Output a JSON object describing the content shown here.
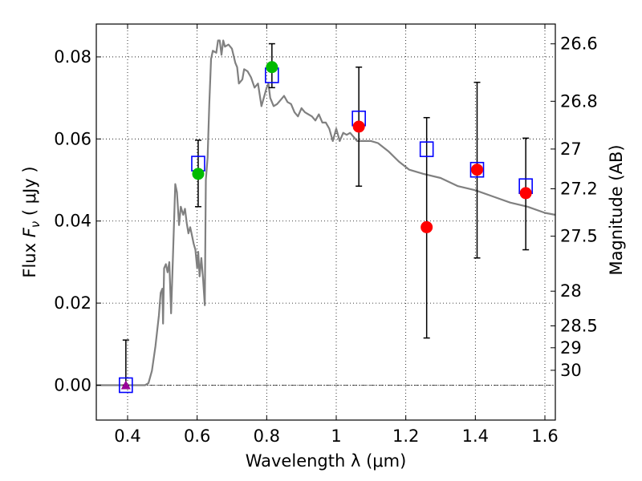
{
  "chart_data": {
    "type": "scatter",
    "title": "",
    "xlabel": "Wavelength  λ (μm)",
    "ylabel_prefix": "Flux  ",
    "ylabel_var": "F",
    "ylabel_sub": "ν",
    "ylabel_suffix": " ( μJy )",
    "y2label": "Magnitude (AB)",
    "xlim": [
      0.31,
      1.63
    ],
    "ylim": [
      -0.0085,
      0.088
    ],
    "grid": true,
    "x_ticks": [
      {
        "value": 0.4,
        "label": "0.4"
      },
      {
        "value": 0.6,
        "label": "0.6"
      },
      {
        "value": 0.8,
        "label": "0.8"
      },
      {
        "value": 1.0,
        "label": "1"
      },
      {
        "value": 1.2,
        "label": "1.2"
      },
      {
        "value": 1.4,
        "label": "1.4"
      },
      {
        "value": 1.6,
        "label": "1.6"
      }
    ],
    "y_ticks": [
      {
        "value": 0.0,
        "label": "0.00"
      },
      {
        "value": 0.02,
        "label": "0.02"
      },
      {
        "value": 0.04,
        "label": "0.04"
      },
      {
        "value": 0.06,
        "label": "0.06"
      },
      {
        "value": 0.08,
        "label": "0.08"
      }
    ],
    "mag_ticks": [
      {
        "mag": 26.6,
        "label": "26.6"
      },
      {
        "mag": 26.8,
        "label": "26.8"
      },
      {
        "mag": 27.0,
        "label": "27"
      },
      {
        "mag": 27.2,
        "label": "27.2"
      },
      {
        "mag": 27.5,
        "label": "27.5"
      },
      {
        "mag": 28.0,
        "label": "28"
      },
      {
        "mag": 28.5,
        "label": "28.5"
      },
      {
        "mag": 29.0,
        "label": "29"
      },
      {
        "mag": 30.0,
        "label": "30"
      }
    ],
    "model_sed": {
      "name": "model SED",
      "color": "#808080",
      "points": [
        [
          0.31,
          0.0
        ],
        [
          0.45,
          0.0
        ],
        [
          0.46,
          0.0005
        ],
        [
          0.47,
          0.0035
        ],
        [
          0.48,
          0.0095
        ],
        [
          0.49,
          0.017
        ],
        [
          0.495,
          0.0225
        ],
        [
          0.5,
          0.0235
        ],
        [
          0.502,
          0.015
        ],
        [
          0.505,
          0.0285
        ],
        [
          0.51,
          0.0295
        ],
        [
          0.515,
          0.0275
        ],
        [
          0.52,
          0.03
        ],
        [
          0.525,
          0.0175
        ],
        [
          0.53,
          0.03
        ],
        [
          0.537,
          0.049
        ],
        [
          0.542,
          0.047
        ],
        [
          0.548,
          0.039
        ],
        [
          0.553,
          0.0435
        ],
        [
          0.56,
          0.0415
        ],
        [
          0.565,
          0.043
        ],
        [
          0.57,
          0.0395
        ],
        [
          0.575,
          0.037
        ],
        [
          0.58,
          0.0385
        ],
        [
          0.585,
          0.0365
        ],
        [
          0.59,
          0.0345
        ],
        [
          0.595,
          0.033
        ],
        [
          0.6,
          0.0285
        ],
        [
          0.603,
          0.0325
        ],
        [
          0.607,
          0.0265
        ],
        [
          0.612,
          0.031
        ],
        [
          0.617,
          0.026
        ],
        [
          0.622,
          0.0195
        ],
        [
          0.625,
          0.05
        ],
        [
          0.63,
          0.0555
        ],
        [
          0.635,
          0.0685
        ],
        [
          0.64,
          0.0795
        ],
        [
          0.645,
          0.0815
        ],
        [
          0.655,
          0.081
        ],
        [
          0.66,
          0.084
        ],
        [
          0.665,
          0.084
        ],
        [
          0.67,
          0.0805
        ],
        [
          0.675,
          0.084
        ],
        [
          0.68,
          0.0825
        ],
        [
          0.69,
          0.083
        ],
        [
          0.7,
          0.082
        ],
        [
          0.71,
          0.0785
        ],
        [
          0.715,
          0.0775
        ],
        [
          0.72,
          0.0735
        ],
        [
          0.73,
          0.0745
        ],
        [
          0.735,
          0.077
        ],
        [
          0.745,
          0.0765
        ],
        [
          0.755,
          0.075
        ],
        [
          0.765,
          0.0725
        ],
        [
          0.775,
          0.0735
        ],
        [
          0.785,
          0.068
        ],
        [
          0.8,
          0.0725
        ],
        [
          0.805,
          0.0735
        ],
        [
          0.81,
          0.07
        ],
        [
          0.82,
          0.068
        ],
        [
          0.83,
          0.0685
        ],
        [
          0.84,
          0.0695
        ],
        [
          0.85,
          0.0705
        ],
        [
          0.86,
          0.069
        ],
        [
          0.87,
          0.0685
        ],
        [
          0.88,
          0.0665
        ],
        [
          0.89,
          0.0655
        ],
        [
          0.9,
          0.0675
        ],
        [
          0.91,
          0.0665
        ],
        [
          0.93,
          0.0655
        ],
        [
          0.94,
          0.0645
        ],
        [
          0.95,
          0.066
        ],
        [
          0.96,
          0.064
        ],
        [
          0.97,
          0.064
        ],
        [
          0.98,
          0.0625
        ],
        [
          0.99,
          0.0595
        ],
        [
          1.0,
          0.0625
        ],
        [
          1.01,
          0.0595
        ],
        [
          1.02,
          0.0615
        ],
        [
          1.03,
          0.061
        ],
        [
          1.04,
          0.0615
        ],
        [
          1.05,
          0.0605
        ],
        [
          1.06,
          0.0595
        ],
        [
          1.08,
          0.0595
        ],
        [
          1.1,
          0.0595
        ],
        [
          1.12,
          0.059
        ],
        [
          1.15,
          0.057
        ],
        [
          1.18,
          0.0545
        ],
        [
          1.21,
          0.0525
        ],
        [
          1.25,
          0.0515
        ],
        [
          1.3,
          0.0505
        ],
        [
          1.35,
          0.0485
        ],
        [
          1.4,
          0.0475
        ],
        [
          1.45,
          0.046
        ],
        [
          1.5,
          0.0445
        ],
        [
          1.55,
          0.0435
        ],
        [
          1.6,
          0.042
        ],
        [
          1.63,
          0.0415
        ]
      ]
    },
    "series": [
      {
        "name": "model band flux",
        "marker": "square",
        "color": "#0000ff",
        "points": [
          [
            0.395,
            0.0
          ],
          [
            0.603,
            0.054
          ],
          [
            0.815,
            0.0755
          ],
          [
            1.065,
            0.065
          ],
          [
            1.26,
            0.0575
          ],
          [
            1.405,
            0.0525
          ],
          [
            1.545,
            0.0485
          ]
        ]
      },
      {
        "name": "observed (green)",
        "marker": "circle",
        "color": "#00bb00",
        "points": [
          [
            0.603,
            0.0515,
            0.0435,
            0.0597
          ],
          [
            0.815,
            0.0775,
            0.0725,
            0.0832
          ]
        ]
      },
      {
        "name": "observed (red)",
        "marker": "circle",
        "color": "#ff0000",
        "points": [
          [
            1.065,
            0.063,
            0.0485,
            0.0775
          ],
          [
            1.26,
            0.0385,
            0.0115,
            0.0652
          ],
          [
            1.405,
            0.0525,
            0.031,
            0.0738
          ],
          [
            1.545,
            0.0468,
            0.033,
            0.0602
          ]
        ]
      },
      {
        "name": "upper limit",
        "marker": "triangle",
        "color": "#990099",
        "points": [
          [
            0.395,
            0.0,
            0.0,
            0.011
          ]
        ]
      }
    ]
  }
}
